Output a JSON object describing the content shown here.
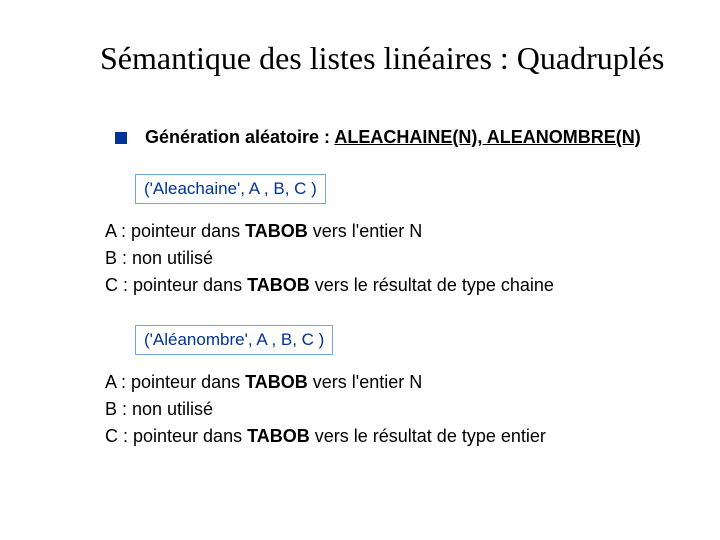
{
  "colors": {
    "sidebar_bg": "#ffffff",
    "bullet_square": "#003399",
    "box_border": "#6fa8dc",
    "box_text": "#003399",
    "body_text": "#000000"
  },
  "title": "Sémantique des listes linéaires  : Quadruplés",
  "bullet": {
    "prefix": "Génération aléatoire : ",
    "funcs": "ALEACHAINE(N), ALEANOMBRE(N)"
  },
  "tuple1": "('Aleachaine', A , B, C )",
  "desc1": {
    "a_pre": "A : pointeur dans ",
    "a_bold": "TABOB",
    "a_post": " vers l'entier N",
    "b": "B : non utilisé",
    "c_pre": "C : pointeur dans ",
    "c_bold": "TABOB",
    "c_post": " vers le résultat de type chaine"
  },
  "tuple2": "('Aléanombre',  A , B, C )",
  "desc2": {
    "a_pre": "A : pointeur dans ",
    "a_bold": "TABOB",
    "a_post": " vers l'entier N",
    "b": "B : non utilisé",
    "c_pre": "C : pointeur dans ",
    "c_bold": "TABOB",
    "c_post": " vers le résultat de type entier"
  }
}
